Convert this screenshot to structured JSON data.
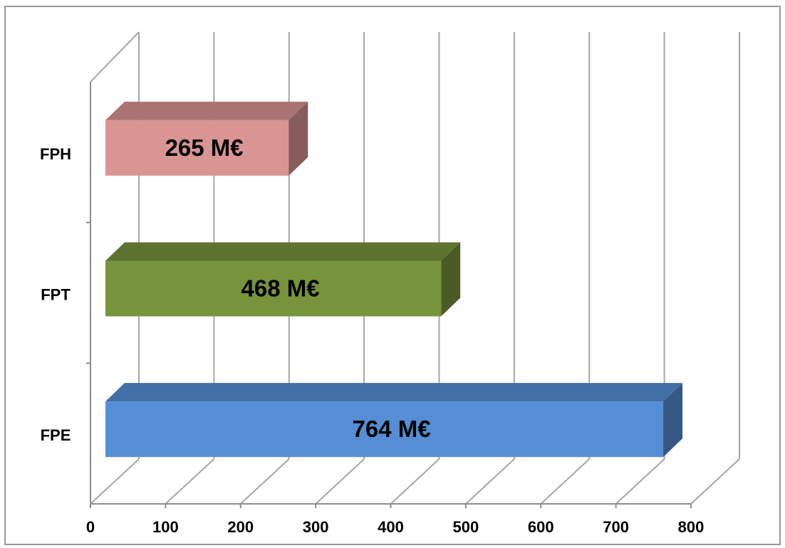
{
  "chart_data": {
    "type": "bar",
    "orientation": "horizontal",
    "style": "3d",
    "categories": [
      "FPE",
      "FPT",
      "FPH"
    ],
    "values": [
      764,
      468,
      265
    ],
    "data_labels": [
      "764 M€",
      "468 M€",
      "265 M€"
    ],
    "colors": [
      "#558ED5",
      "#77933C",
      "#D99594"
    ],
    "title": "",
    "xlabel": "",
    "ylabel": "",
    "xlim": [
      0,
      800
    ],
    "x_ticks": [
      "0",
      "100",
      "200",
      "300",
      "400",
      "500",
      "600",
      "700",
      "800"
    ],
    "grid": true,
    "legend": "none"
  }
}
